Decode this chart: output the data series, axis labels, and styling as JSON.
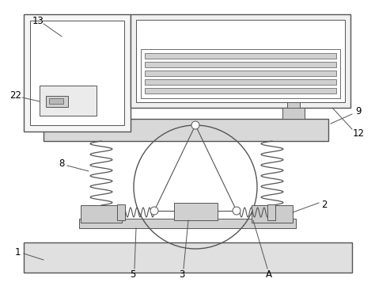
{
  "bg_color": "#ffffff",
  "line_color": "#555555",
  "figsize": [
    4.74,
    3.66
  ],
  "dpi": 100,
  "label_fontsize": 8.5
}
